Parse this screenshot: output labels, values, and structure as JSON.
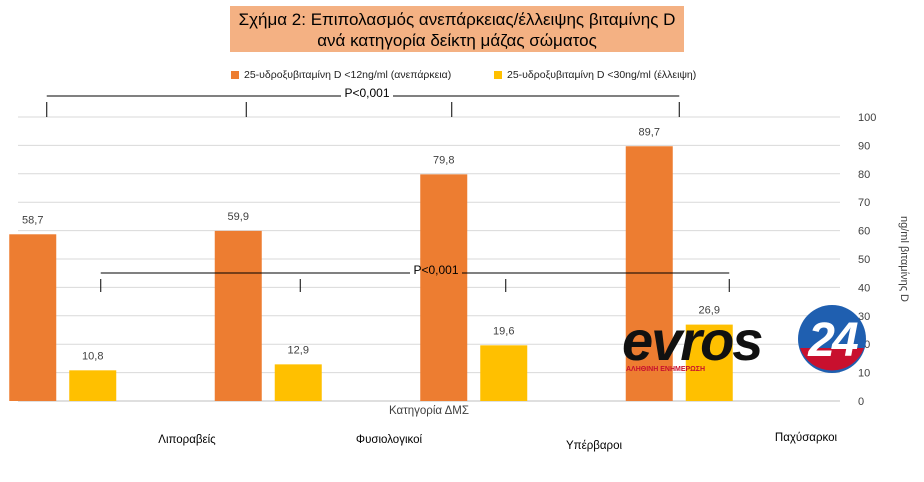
{
  "chart_data": {
    "type": "bar",
    "title_lines": [
      "Σχήμα 2: Επιπολασμός ανεπάρκειας/έλλειψης βιταμίνης D",
      "ανά κατηγορία δείκτη μάζας σώματος"
    ],
    "categories": [
      "Λιποραβείς",
      "Φυσιολογικοί",
      "Υπέρβαροι",
      "Παχύσαρκοι"
    ],
    "series": [
      {
        "name": "25-υδροξυβιταμίνη D <12ng/ml (ανεπάρκεια)",
        "color": "#ed7d31",
        "values": [
          58.7,
          59.9,
          79.8,
          89.7
        ]
      },
      {
        "name": "25-υδροξυβιταμίνη D <30ng/ml (έλλειψη)",
        "color": "#ffc000",
        "values": [
          10.8,
          12.9,
          19.6,
          26.9
        ]
      }
    ],
    "data_labels": [
      [
        "58,7",
        "59,9",
        "79,8",
        "89,7"
      ],
      [
        "10,8",
        "12,9",
        "19,6",
        "26,9"
      ]
    ],
    "xlabel": "Κατηγορία ΔΜΣ",
    "ylabel": "ng/ml βιταμίνης D",
    "ylim": [
      0,
      100
    ],
    "yticks": [
      0,
      10,
      20,
      30,
      40,
      50,
      60,
      70,
      80,
      90,
      100
    ],
    "y_axis_side": "right",
    "grid": true,
    "legend_position": "top",
    "annotations": [
      {
        "text": "P<0,001",
        "series": "25-υδροξυβιταμίνη D <12ng/ml (ανεπάρκεια)"
      },
      {
        "text": "P<0,001",
        "series": "25-υδροξυβιταμίνη D <30ng/ml (έλλειψη)"
      }
    ]
  },
  "watermark": {
    "text_main": "evros",
    "text_number": "24",
    "tagline": "ΑΛΗΘΙΝΗ ΕΝΗΜΕΡΩΣΗ"
  }
}
